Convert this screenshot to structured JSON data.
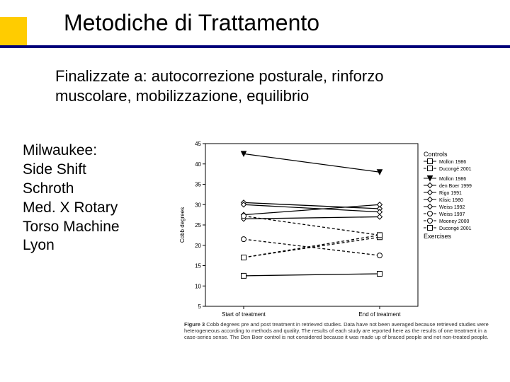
{
  "title": "Metodiche di Trattamento",
  "subtitle": "Finalizzate a: autocorrezione posturale, rinforzo muscolare, mobilizzazione, equilibrio",
  "methods": [
    "Milwaukee:",
    "Side Shift",
    "Schroth",
    "Med. X Rotary",
    "Torso Machine",
    "Lyon"
  ],
  "chart": {
    "type": "line",
    "background_color": "#ffffff",
    "border_color": "#000000",
    "font_family": "Arial",
    "ylabel": "Cobb degrees",
    "ylabel_fontsize": 8,
    "ylim": [
      5,
      45
    ],
    "ytick_step": 5,
    "ytick_fontsize": 8,
    "x_categories": [
      "Start of treatment",
      "End of treatment"
    ],
    "xtick_fontsize": 8,
    "legend": {
      "title_controls": "Controls",
      "title_exercises": "Exercises",
      "fontsize": 7,
      "text_color": "#000000",
      "items": [
        {
          "label": "Mollon 1986",
          "group": "controls",
          "color": "#000000",
          "dash": "none",
          "marker": "square-open",
          "start": 12.5,
          "end": 13.0
        },
        {
          "label": "Ducongé 2001",
          "group": "controls",
          "color": "#000000",
          "dash": "4,3",
          "marker": "square-open",
          "start": 17.0,
          "end": 22.0
        },
        {
          "label": "Mollon 1986",
          "group": "exercises",
          "color": "#000000",
          "dash": "none",
          "marker": "triangle-down",
          "start": 42.5,
          "end": 38.0
        },
        {
          "label": "den Boer 1999",
          "group": "exercises",
          "color": "#000000",
          "dash": "none",
          "marker": "diamond-open",
          "start": 30.5,
          "end": 29.0
        },
        {
          "label": "Rigo 1991",
          "group": "exercises",
          "color": "#000000",
          "dash": "none",
          "marker": "diamond-open",
          "start": 30.0,
          "end": 28.2
        },
        {
          "label": "Klisic 1980",
          "group": "exercises",
          "color": "#000000",
          "dash": "none",
          "marker": "diamond-open",
          "start": 26.5,
          "end": 27.0
        },
        {
          "label": "Weiss 1992",
          "group": "exercises",
          "color": "#000000",
          "dash": "none",
          "marker": "diamond-open",
          "start": 27.5,
          "end": 30.0
        },
        {
          "label": "Weiss 1997",
          "group": "exercises",
          "color": "#000000",
          "dash": "4,3",
          "marker": "circle-open",
          "start": 27.2,
          "end": 22.5
        },
        {
          "label": "Mooney 2000",
          "group": "exercises",
          "color": "#000000",
          "dash": "4,3",
          "marker": "circle-open",
          "start": 21.5,
          "end": 17.5
        },
        {
          "label": "Ducongé 2001",
          "group": "exercises",
          "color": "#000000",
          "dash": "4,3",
          "marker": "square-open",
          "start": 17.0,
          "end": 22.5
        }
      ]
    }
  },
  "caption_lead": "Figure 3",
  "caption_body": "  Cobb degrees pre and post treatment in retrieved studies. Data have not been averaged because retrieved studies were heterogeneous according to methods and quality. The results of each study are reported here as the results of one treatment in a case-series sense. The Den Boer control is not considered because it was made up of braced people and not non-treated people."
}
